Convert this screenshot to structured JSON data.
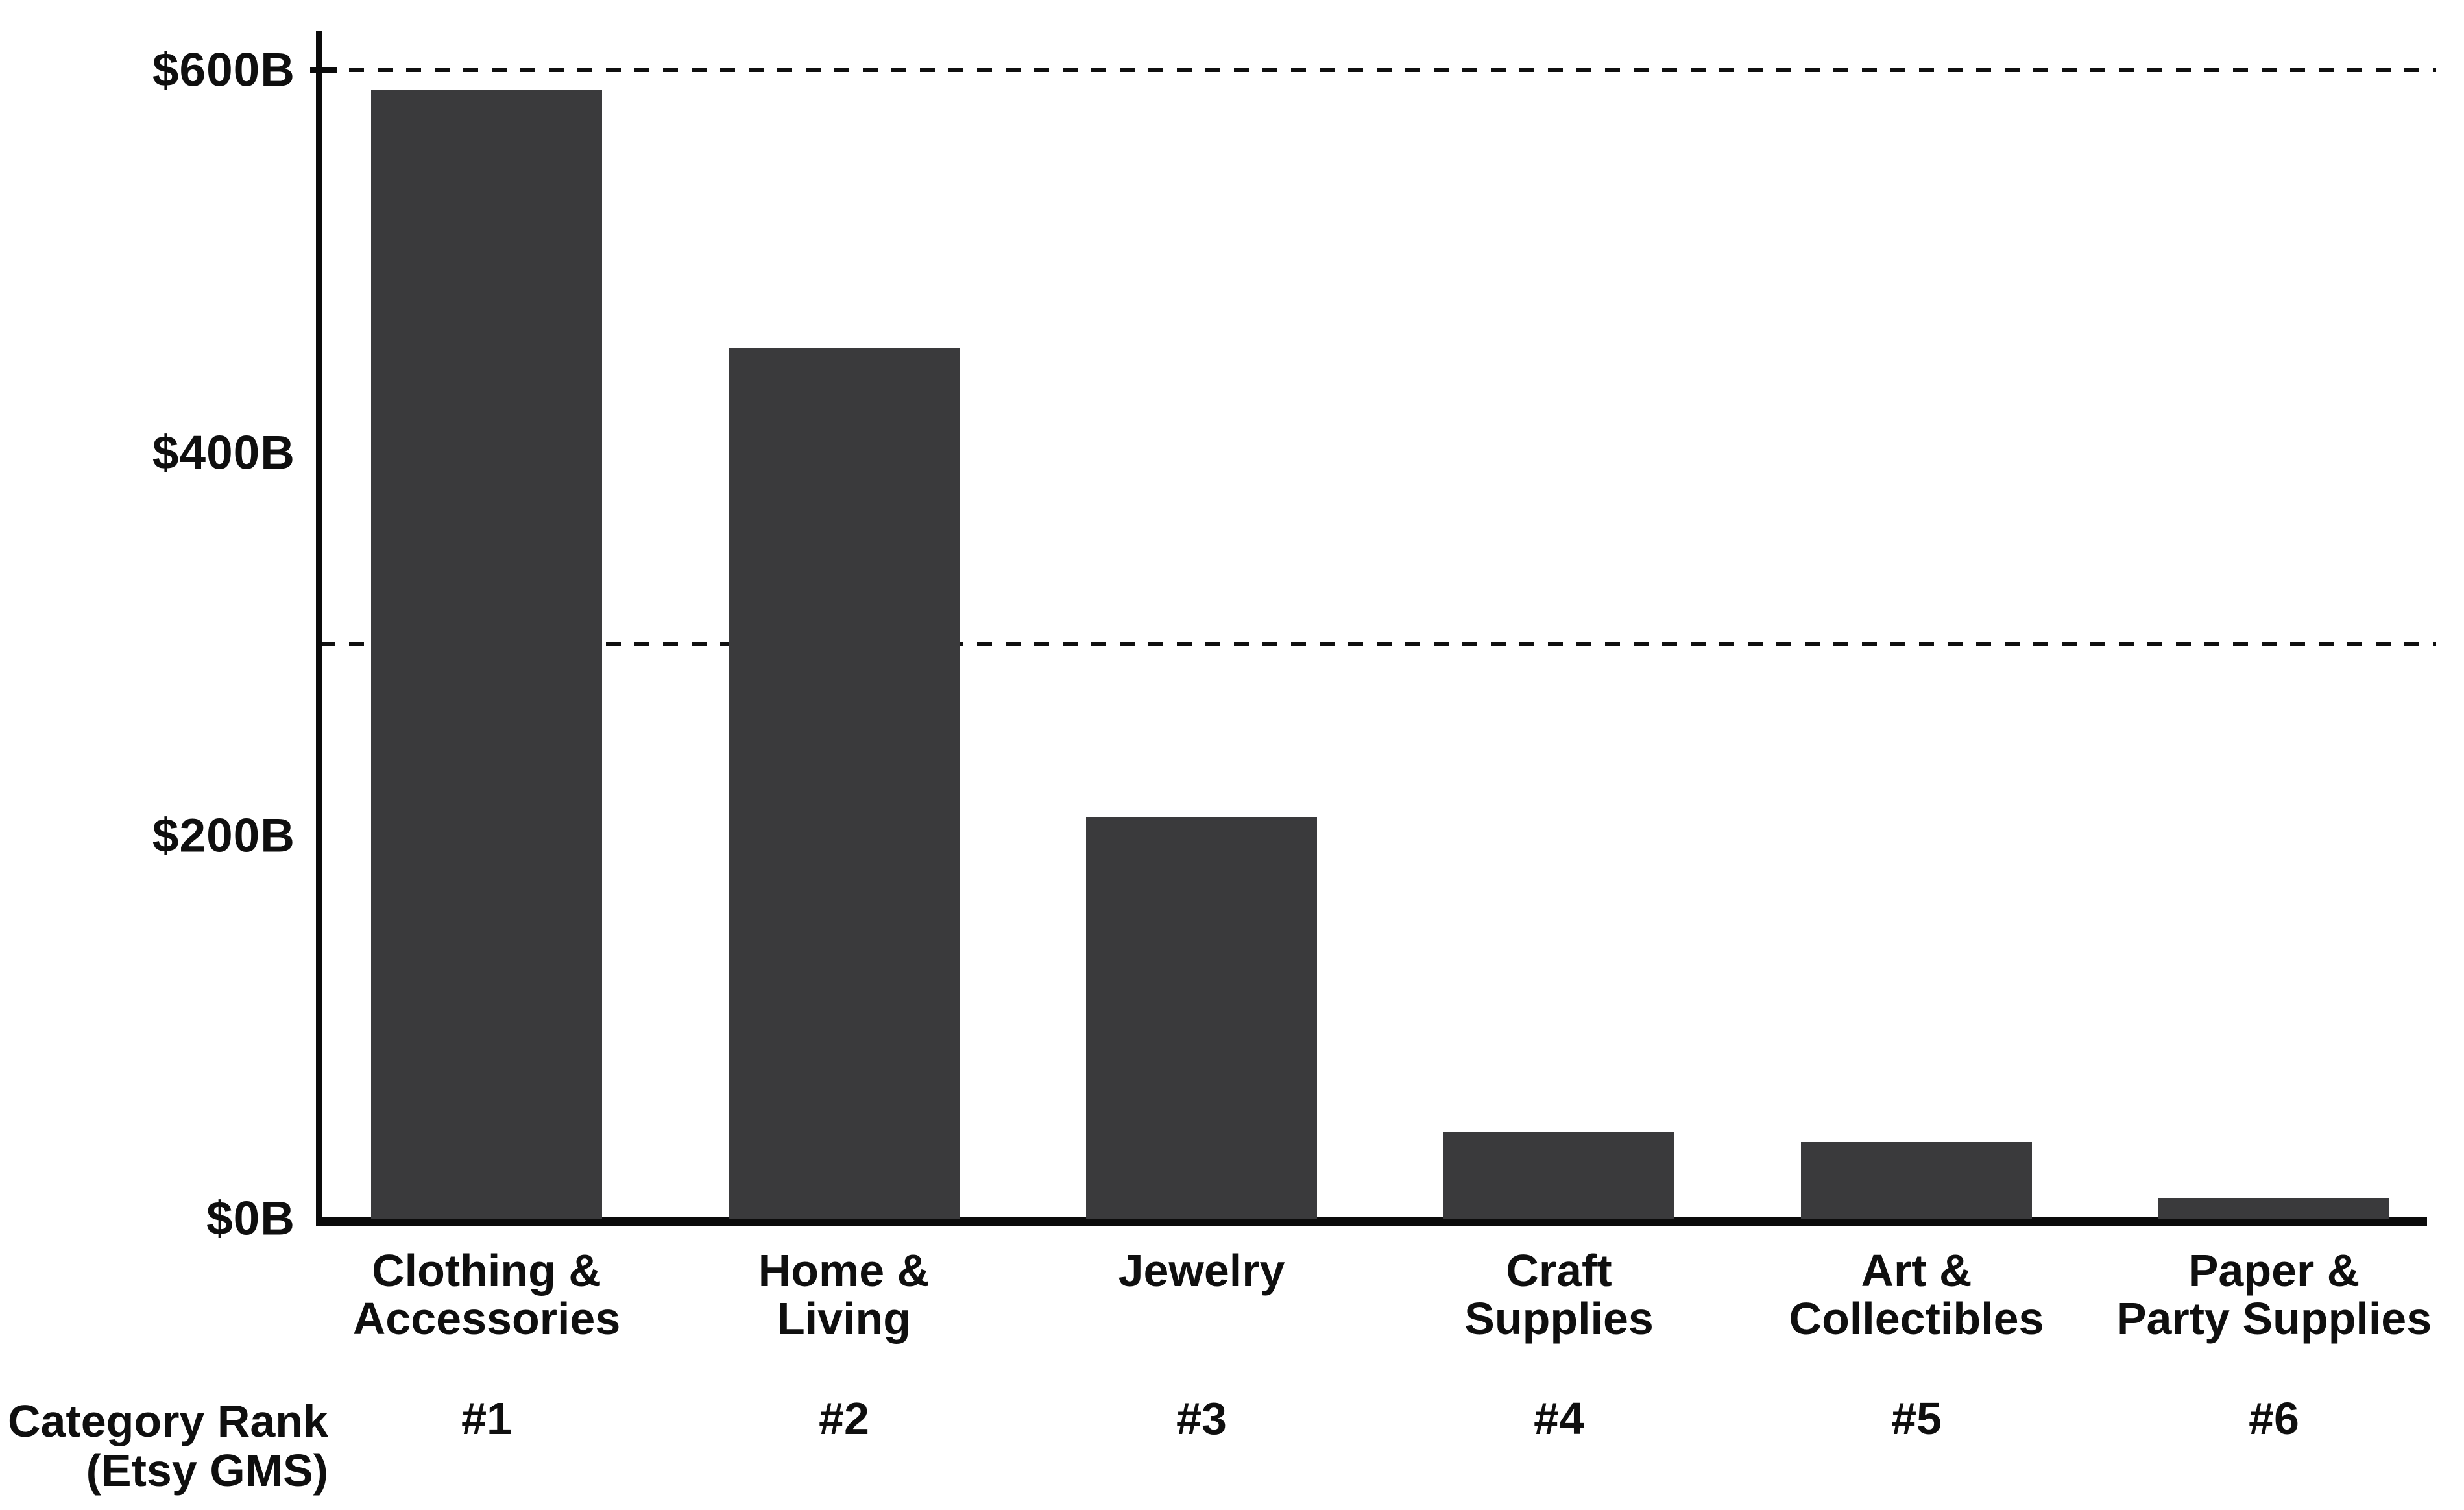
{
  "chart_data": {
    "type": "bar",
    "title": "",
    "categories": [
      "Clothing & Accessories",
      "Home & Living",
      "Jewelry",
      "Craft Supplies",
      "Art & Collectibles",
      "Paper & Party Supplies"
    ],
    "category_label_lines": [
      [
        "Clothing &",
        "Accessories"
      ],
      [
        "Home &",
        "Living"
      ],
      [
        "Jewelry"
      ],
      [
        "Craft",
        "Supplies"
      ],
      [
        "Art &",
        "Collectibles"
      ],
      [
        "Paper &",
        "Party Supplies"
      ]
    ],
    "values": [
      590,
      455,
      210,
      45,
      40,
      11
    ],
    "unit": "$B",
    "ranks": [
      "#1",
      "#2",
      "#3",
      "#4",
      "#5",
      "#6"
    ],
    "rank_row_label_lines": [
      "Category Rank",
      "(Etsy GMS)"
    ],
    "y_ticks": [
      {
        "label": "$600B",
        "value": 600
      },
      {
        "label": "$400B",
        "value": 400
      },
      {
        "label": "$200B",
        "value": 200
      },
      {
        "label": "$0B",
        "value": 0
      }
    ],
    "reference_lines": [
      {
        "value": 600,
        "style": "dashed"
      },
      {
        "value": 300,
        "style": "dashed"
      }
    ],
    "ylim": [
      0,
      620
    ],
    "grid": false,
    "legend": null,
    "colors": {
      "bar": "#3a3a3c",
      "axis": "#0b0b0b",
      "reference_line": "#101010",
      "text": "#0f0f0f",
      "background": "#ffffff"
    }
  }
}
